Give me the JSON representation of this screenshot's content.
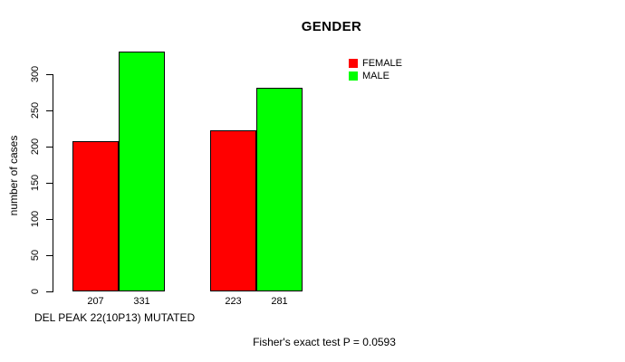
{
  "chart_data": {
    "type": "bar",
    "title": "GENDER",
    "ylabel": "number of cases",
    "xlabel": "",
    "group_label": "DEL PEAK 22(10P13) MUTATED",
    "categories": [
      "DEL PEAK 22(10P13) MUTATED",
      ""
    ],
    "series": [
      {
        "name": "FEMALE",
        "color": "#ff0000",
        "values": [
          207,
          223
        ]
      },
      {
        "name": "MALE",
        "color": "#00ff00",
        "values": [
          331,
          281
        ]
      }
    ],
    "bar_value_labels": [
      [
        "207",
        "223"
      ],
      [
        "331",
        "281"
      ]
    ],
    "yticks": [
      0,
      50,
      100,
      150,
      200,
      250,
      300
    ],
    "ylim": [
      0,
      345
    ],
    "grid": false,
    "legend_position": "top-right",
    "annotation": "Fisher's exact test P = 0.0593",
    "bar_border_color": "#000000",
    "axis_color": "#000000",
    "text_color": "#000000",
    "background": "#ffffff"
  }
}
